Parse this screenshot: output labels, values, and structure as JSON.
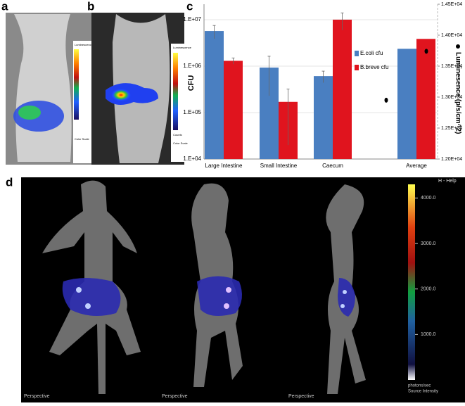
{
  "panels": {
    "a": "a",
    "b": "b",
    "c": "c",
    "d": "d"
  },
  "panel_a": {
    "colorbar_title": "Luminescence",
    "color_scale": "Color Scale"
  },
  "panel_b": {
    "colorbar_title": "Luminescence",
    "color_scale": "Color Scale",
    "units": "Counts"
  },
  "chart_data": {
    "type": "bar",
    "ylabel": "CFU",
    "y2label": "Luminesence (p/s/cm^2)",
    "categories": [
      "Large Intestine",
      "Small Intestine",
      "Caecum",
      "Average"
    ],
    "log_y": true,
    "grid": true,
    "ylim": [
      10000,
      21500000
    ],
    "yticks": [
      {
        "value": 10000,
        "label": "1.E+04"
      },
      {
        "value": 100000,
        "label": "1.E+05"
      },
      {
        "value": 1000000,
        "label": "1.E+06"
      },
      {
        "value": 10000000,
        "label": "1.E+07"
      }
    ],
    "y2lim": [
      12000,
      14500
    ],
    "y2ticks": [
      {
        "value": 12000,
        "label": "1.20E+04"
      },
      {
        "value": 12500,
        "label": "1.25E+04"
      },
      {
        "value": 13000,
        "label": "1.30E+04"
      },
      {
        "value": 13500,
        "label": "1.35E+04"
      },
      {
        "value": 14000,
        "label": "1.40E+04"
      },
      {
        "value": 14500,
        "label": "1.45E+04"
      }
    ],
    "series": [
      {
        "name": "E.coli cfu",
        "color": "#4a7fc1",
        "values": [
          5700000,
          930000,
          610000,
          null
        ],
        "errors": [
          1800000,
          700000,
          170000,
          null
        ]
      },
      {
        "name": "B.breve cfu",
        "color": "#e0141e",
        "values": [
          1300000,
          170000,
          10000000,
          null
        ],
        "errors": [
          200000,
          150000,
          4000000,
          null
        ]
      }
    ],
    "y2_series": [
      {
        "color": "#4a7fc1",
        "axis": "y2",
        "values": [
          null,
          null,
          null,
          13780
        ]
      },
      {
        "color": "#e0141e",
        "axis": "y2",
        "values": [
          null,
          null,
          null,
          13940
        ]
      }
    ],
    "y2_points": {
      "axis": "y2",
      "color": "#000000",
      "values": [
        12950,
        13740
      ]
    }
  },
  "panel_d": {
    "help": "H - Help",
    "view_labels": [
      "Perspective",
      "Perspective",
      "Perspective"
    ],
    "colorbar_units": "photons/sec",
    "colorbar_title": "Source Intensity",
    "colorbar_lim": [
      0,
      4300
    ],
    "colorbar_ticks": [
      {
        "value": 4000,
        "label": "4000.0"
      },
      {
        "value": 3000,
        "label": "3000.0"
      },
      {
        "value": 2000,
        "label": "2000.0"
      },
      {
        "value": 1000,
        "label": "1000.0"
      }
    ]
  }
}
